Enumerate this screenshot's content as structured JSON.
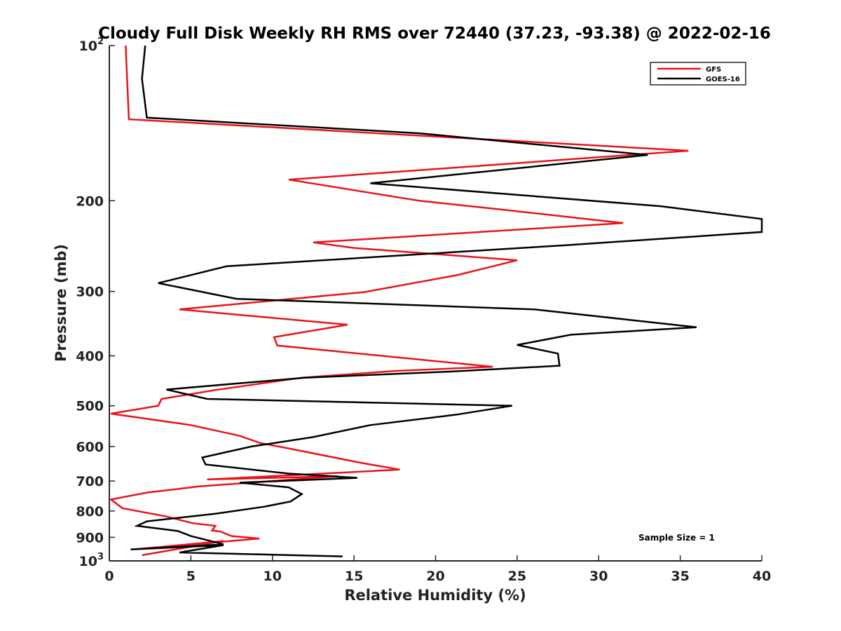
{
  "chart_data": {
    "type": "line",
    "title": "Cloudy Full Disk Weekly RH RMS over 72440 (37.23, -93.38) @ 2022-02-16",
    "xlabel": "Relative Humidity (%)",
    "ylabel": "Pressure (mb)",
    "xlim": [
      0,
      40
    ],
    "ylim": [
      100,
      1000
    ],
    "y_scale": "log",
    "y_reversed": true,
    "grid": false,
    "legend_position": "top-right",
    "x_ticks": [
      "0",
      "5",
      "10",
      "15",
      "20",
      "25",
      "30",
      "35",
      "40"
    ],
    "y_ticks": [
      {
        "value": 100,
        "base": "10",
        "exp": "2"
      },
      {
        "value": 200,
        "label": "200"
      },
      {
        "value": 300,
        "label": "300"
      },
      {
        "value": 400,
        "label": "400"
      },
      {
        "value": 500,
        "label": "500"
      },
      {
        "value": 600,
        "label": "600"
      },
      {
        "value": 700,
        "label": "700"
      },
      {
        "value": 800,
        "label": "800"
      },
      {
        "value": 900,
        "label": "900"
      },
      {
        "value": 1000,
        "base": "10",
        "exp": "3"
      }
    ],
    "annotation": "Sample Size = 1",
    "series": [
      {
        "name": "GFS",
        "color": "#e8141c",
        "points": [
          [
            1.0,
            100
          ],
          [
            1.2,
            139
          ],
          [
            35.5,
            160
          ],
          [
            11.0,
            182
          ],
          [
            19.0,
            200
          ],
          [
            24.0,
            208
          ],
          [
            31.5,
            221
          ],
          [
            12.5,
            241
          ],
          [
            15.0,
            247
          ],
          [
            25.0,
            261
          ],
          [
            21.3,
            279
          ],
          [
            15.6,
            301
          ],
          [
            4.3,
            325
          ],
          [
            14.6,
            348
          ],
          [
            10.1,
            368
          ],
          [
            10.3,
            382
          ],
          [
            23.5,
            420
          ],
          [
            17.5,
            428
          ],
          [
            11.8,
            441
          ],
          [
            6.5,
            466
          ],
          [
            3.2,
            485
          ],
          [
            3.0,
            500
          ],
          [
            0.1,
            518
          ],
          [
            5.0,
            545
          ],
          [
            8.0,
            572
          ],
          [
            9.2,
            590
          ],
          [
            11.0,
            605
          ],
          [
            15.4,
            645
          ],
          [
            17.8,
            665
          ],
          [
            6.0,
            695
          ],
          [
            14.0,
            685
          ],
          [
            5.5,
            717
          ],
          [
            2.3,
            737
          ],
          [
            0.1,
            760
          ],
          [
            0.8,
            790
          ],
          [
            3.5,
            820
          ],
          [
            5.1,
            845
          ],
          [
            6.5,
            855
          ],
          [
            6.3,
            873
          ],
          [
            6.8,
            877
          ],
          [
            7.5,
            895
          ],
          [
            9.2,
            905
          ],
          [
            1.8,
            948
          ],
          [
            7.0,
            915
          ],
          [
            2.0,
            975
          ]
        ]
      },
      {
        "name": "GOES-16",
        "color": "#000000",
        "points": [
          [
            2.2,
            100
          ],
          [
            2.0,
            116
          ],
          [
            2.3,
            138
          ],
          [
            19.0,
            148
          ],
          [
            33.0,
            163
          ],
          [
            16.0,
            185
          ],
          [
            33.8,
            205
          ],
          [
            40.0,
            217
          ],
          [
            40.0,
            230
          ],
          [
            28.0,
            244
          ],
          [
            7.2,
            268
          ],
          [
            3.0,
            289
          ],
          [
            7.8,
            310
          ],
          [
            26.0,
            325
          ],
          [
            36.0,
            352
          ],
          [
            28.3,
            364
          ],
          [
            25.0,
            381
          ],
          [
            27.5,
            396
          ],
          [
            27.6,
            418
          ],
          [
            21.0,
            429
          ],
          [
            12.0,
            441
          ],
          [
            3.5,
            465
          ],
          [
            6.0,
            485
          ],
          [
            24.7,
            500
          ],
          [
            21.3,
            520
          ],
          [
            16.0,
            545
          ],
          [
            12.5,
            575
          ],
          [
            8.7,
            600
          ],
          [
            5.7,
            630
          ],
          [
            5.9,
            650
          ],
          [
            11.0,
            677
          ],
          [
            15.2,
            690
          ],
          [
            8.0,
            705
          ],
          [
            11.0,
            720
          ],
          [
            11.8,
            742
          ],
          [
            11.1,
            767
          ],
          [
            9.5,
            785
          ],
          [
            6.5,
            810
          ],
          [
            2.3,
            838
          ],
          [
            1.7,
            855
          ],
          [
            4.2,
            875
          ],
          [
            5.0,
            895
          ],
          [
            6.2,
            915
          ],
          [
            7.0,
            929
          ],
          [
            1.3,
            950
          ],
          [
            7.0,
            932
          ],
          [
            4.3,
            963
          ],
          [
            14.3,
            980
          ]
        ]
      }
    ]
  }
}
